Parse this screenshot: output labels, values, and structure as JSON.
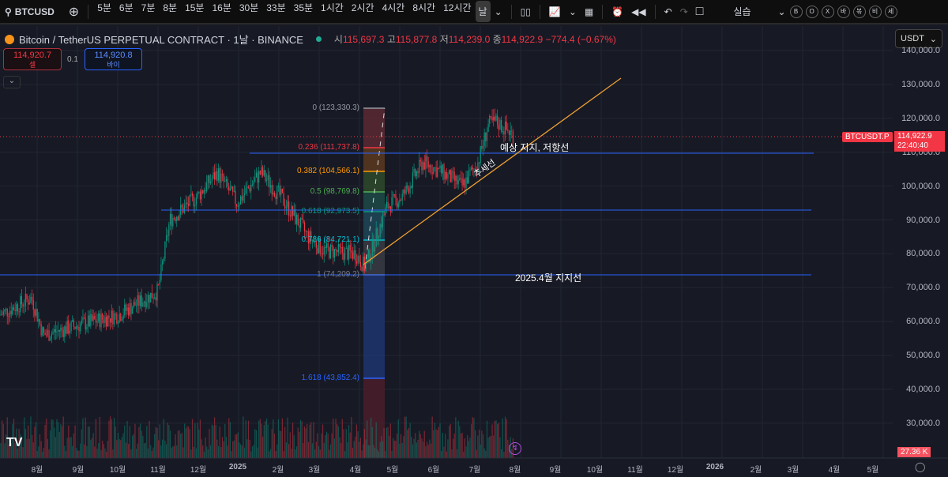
{
  "toolbar": {
    "symbol": "BTCUSD",
    "intervals": [
      "5분",
      "6분",
      "7분",
      "8분",
      "15분",
      "16분",
      "30분",
      "33분",
      "35분",
      "1시간",
      "2시간",
      "4시간",
      "8시간",
      "12시간",
      "날"
    ],
    "active_interval": "날",
    "layout_label": "실습",
    "circles": [
      "B",
      "O",
      "X",
      "바",
      "볶",
      "비",
      "세"
    ]
  },
  "legend": {
    "title": "Bitcoin / TetherUS PERPETUAL CONTRACT · 1날 · BINANCE",
    "o_label": "시",
    "o": "115,697.3",
    "h_label": "고",
    "h": "115,877.8",
    "l_label": "저",
    "l": "114,239.0",
    "c_label": "종",
    "c": "114,922.9",
    "change": "−774.4 (−0.67%)"
  },
  "trade": {
    "sell_price": "114,920.7",
    "sell_label": "셀",
    "spread": "0.1",
    "buy_price": "114,920.8",
    "buy_label": "바이"
  },
  "currency": "USDT",
  "price_axis": [
    "140,000.0",
    "130,000.0",
    "120,000.0",
    "110,000.0",
    "100,000.0",
    "90,000.0",
    "80,000.0",
    "70,000.0",
    "60,000.0",
    "50,000.0",
    "40,000.0",
    "30,000.0"
  ],
  "current": {
    "symbol": "BTCUSDT.P",
    "price": "114,922.9",
    "countdown": "22:40:40",
    "volume": "27.36 K"
  },
  "time_axis": [
    "8월",
    "9월",
    "10월",
    "11월",
    "12월",
    "2025",
    "2월",
    "3월",
    "4월",
    "5월",
    "6월",
    "7월",
    "8월",
    "9월",
    "10월",
    "11월",
    "12월",
    "2026",
    "2월",
    "3월",
    "4월",
    "5월"
  ],
  "fib": [
    {
      "label": "0 (123,330.3)",
      "color": "#9598a1"
    },
    {
      "label": "0.236 (111,737.8)",
      "color": "#f23645"
    },
    {
      "label": "0.382 (104,566.1)",
      "color": "#ff9800"
    },
    {
      "label": "0.5 (98,769.8)",
      "color": "#4caf50"
    },
    {
      "label": "0.618 (92,973.5)",
      "color": "#089981"
    },
    {
      "label": "0.786 (84,721.1)",
      "color": "#00bcd4"
    },
    {
      "label": "1 (74,209.2)",
      "color": "#787b86"
    },
    {
      "label": "1.618 (43,852.4)",
      "color": "#2962ff"
    }
  ],
  "annotations": {
    "resistance": "예상 지지, 저항선",
    "trend": "추세선",
    "support": "2025.4월 지지선"
  },
  "colors": {
    "up": "#089981",
    "down": "#f23645",
    "hline": "#2962ff",
    "trend": "#f0a030"
  }
}
